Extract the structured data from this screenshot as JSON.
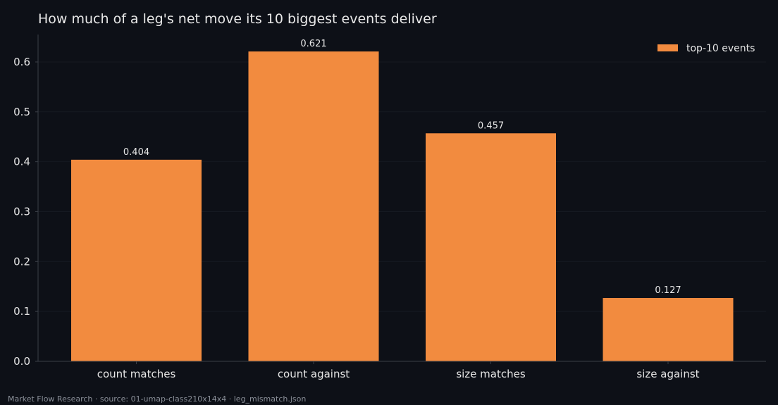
{
  "title": "How much of a leg's net move its 10 biggest events deliver",
  "footer": "Market Flow Research · source: 01-umap-class210x14x4 · leg_mismatch.json",
  "colors": {
    "background": "#0d1017",
    "bar": "#f28b3f",
    "axis": "#3a3f47",
    "grid": "#161a22",
    "text": "#e6e6e6"
  },
  "chart_data": {
    "type": "bar",
    "title": "How much of a leg's net move its 10 biggest events deliver",
    "xlabel": "",
    "ylabel": "",
    "categories": [
      "count matches",
      "count against",
      "size matches",
      "size against"
    ],
    "series": [
      {
        "name": "top-10 events",
        "values": [
          0.404,
          0.621,
          0.457,
          0.127
        ]
      }
    ],
    "value_labels": [
      "0.404",
      "0.621",
      "0.457",
      "0.127"
    ],
    "ylim": [
      0,
      0.655
    ],
    "yticks": [
      0.0,
      0.1,
      0.2,
      0.3,
      0.4,
      0.5,
      0.6
    ],
    "ytick_labels": [
      "0.0",
      "0.1",
      "0.2",
      "0.3",
      "0.4",
      "0.5",
      "0.6"
    ],
    "grid": true,
    "legend_position": "top-right"
  }
}
